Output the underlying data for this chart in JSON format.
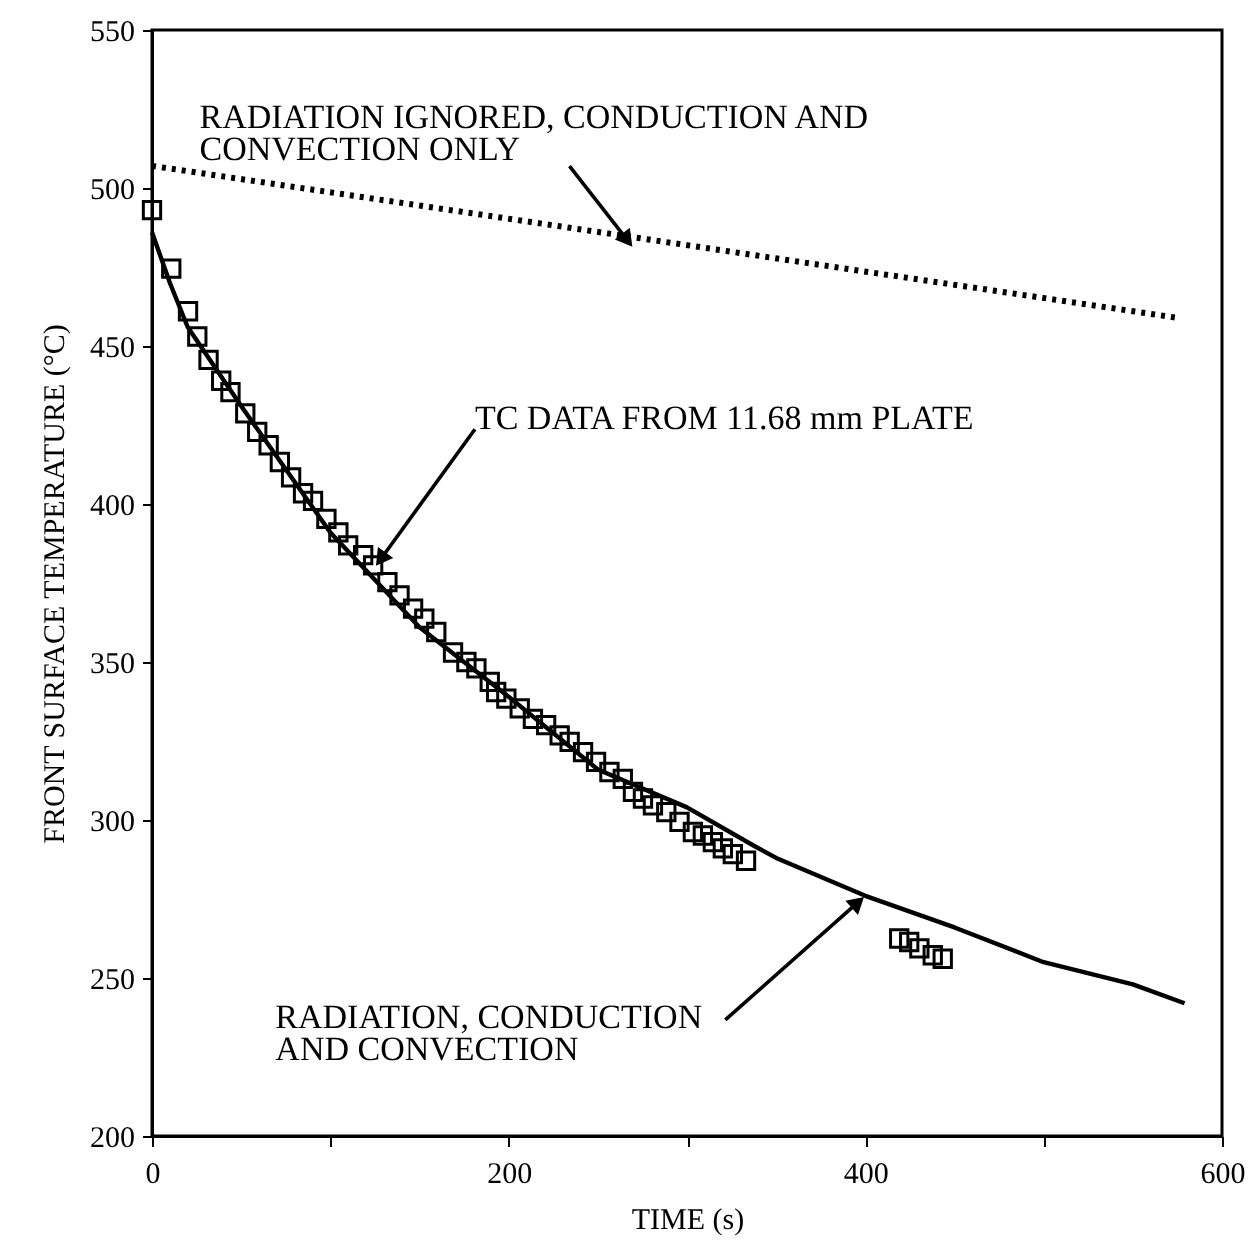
{
  "chart_data": {
    "type": "line",
    "xlabel": "TIME (s)",
    "ylabel": "FRONT SURFACE TEMPERATURE (°C)",
    "xlim": [
      0,
      600
    ],
    "ylim": [
      200,
      550
    ],
    "xticks": [
      0,
      {
        "value": 100,
        "label": null
      },
      200,
      {
        "value": 300,
        "label": null
      },
      400,
      {
        "value": 500,
        "label": null
      },
      600
    ],
    "yticks": [
      200,
      250,
      300,
      350,
      400,
      450,
      500,
      550
    ],
    "grid": false,
    "series": [
      {
        "type": "line",
        "line_style": "dotted",
        "color": "#000000",
        "x": [
          0,
          574
        ],
        "values": [
          507,
          459
        ]
      },
      {
        "type": "line",
        "line_style": "solid",
        "color": "#000000",
        "x": [
          0,
          5,
          10,
          20,
          50,
          100,
          150,
          200,
          250,
          300,
          337,
          350,
          400,
          450,
          500,
          550,
          579
        ],
        "values": [
          486,
          478,
          470,
          456,
          431,
          391,
          361,
          339,
          316,
          304,
          292,
          288,
          276,
          266,
          255,
          248,
          242
        ]
      },
      {
        "type": "scatter",
        "marker": "square",
        "color": "#000000",
        "x": [
          0,
          10.8,
          20.2,
          25.4,
          31.7,
          38.8,
          44,
          52.3,
          59,
          65.4,
          71.7,
          78,
          84.7,
          90.3,
          97.8,
          104.5,
          110,
          118.4,
          124,
          132,
          138.8,
          146.4,
          152.7,
          159.4,
          168.8,
          176.3,
          181.9,
          189.4,
          193,
          198.7,
          206.2,
          213.6,
          221,
          228.6,
          234.2,
          241.7,
          249,
          256.5,
          264,
          269.7,
          275.3,
          280.9,
          288.4,
          295.8,
          303.3,
          308.9,
          314.5,
          320.1,
          325.7,
          333.1,
          419,
          424.6,
          430.3,
          437.8,
          443.4
        ],
        "values": [
          493,
          474.5,
          461,
          453,
          445.6,
          439,
          435.4,
          428.7,
          422.8,
          418.6,
          413.3,
          408.4,
          403.4,
          401,
          395.3,
          391,
          386.9,
          383.8,
          380.6,
          375.3,
          371.1,
          366.9,
          363.7,
          359.5,
          353,
          350,
          348,
          343.7,
          340.5,
          338.4,
          335.3,
          332,
          330,
          326.8,
          324.7,
          321.5,
          318.4,
          315.2,
          313,
          308.9,
          306.8,
          304.6,
          302.5,
          299.4,
          296.2,
          295.1,
          293,
          291,
          289.2,
          287.1,
          262.5,
          261.4,
          259.4,
          257.2,
          256.1
        ]
      }
    ],
    "annotations": [
      {
        "text": "RADIATION IGNORED, CONDUCTION AND\nCONVECTION ONLY",
        "x": 270,
        "y": 481
      },
      {
        "text": "TC DATA FROM 11.68 mm PLATE",
        "x": 125,
        "y": 380
      },
      {
        "text": "RADIATION, CONDUCTION\nAND CONVECTION",
        "x": 400,
        "y": 276
      }
    ]
  }
}
